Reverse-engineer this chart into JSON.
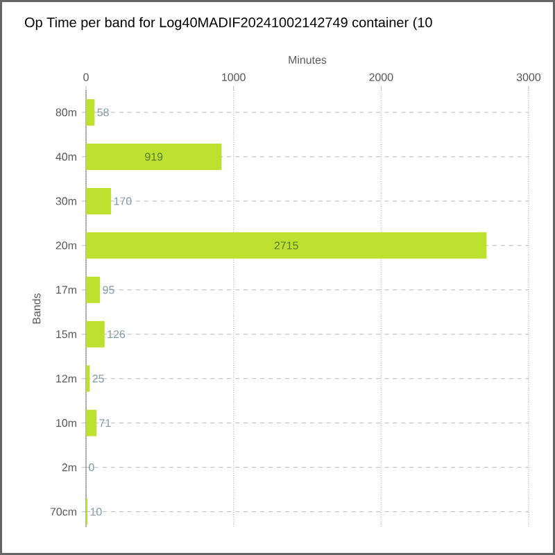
{
  "chart_data": {
    "type": "bar",
    "orientation": "horizontal",
    "title": "Op Time per band for Log40MADIF20241002142749 container (10",
    "xlabel": "Minutes",
    "ylabel": "Bands",
    "categories": [
      "80m",
      "40m",
      "30m",
      "20m",
      "17m",
      "15m",
      "12m",
      "10m",
      "2m",
      "70cm"
    ],
    "values": [
      58,
      919,
      170,
      2715,
      95,
      126,
      25,
      71,
      0,
      10
    ],
    "color": "#bde12f",
    "xlim": [
      0,
      3000
    ],
    "xticks": [
      0,
      1000,
      2000,
      3000
    ],
    "grid": true,
    "data_labels": true
  }
}
